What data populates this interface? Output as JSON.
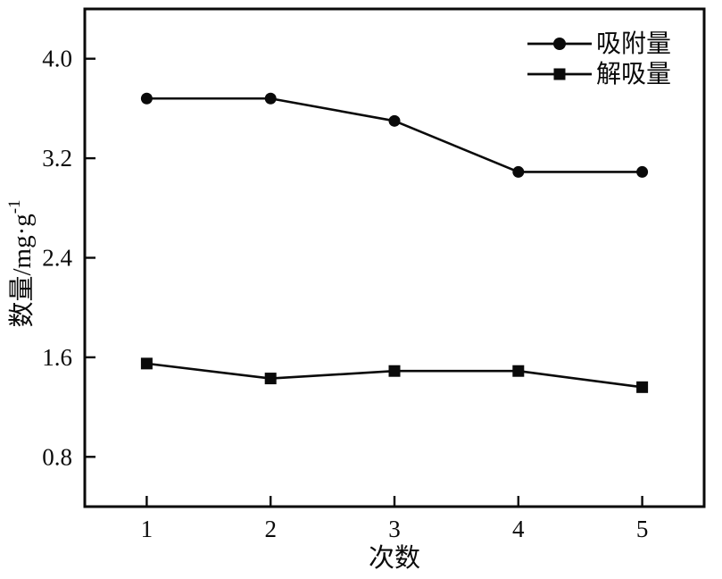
{
  "chart_data": {
    "type": "line",
    "title": "",
    "xlabel": "次数",
    "ylabel": {
      "text": "数量/mg·g",
      "sup": "-1"
    },
    "x": [
      1,
      2,
      3,
      4,
      5
    ],
    "xtick_labels": [
      "1",
      "2",
      "3",
      "4",
      "5"
    ],
    "yticks": [
      0.8,
      1.6,
      2.4,
      3.2,
      4.0
    ],
    "ytick_labels": [
      "0.8",
      "1.6",
      "2.4",
      "3.2",
      "4.0"
    ],
    "xlim": [
      0.5,
      5.5
    ],
    "ylim": [
      0.4,
      4.4
    ],
    "grid": false,
    "legend_position": "top-right",
    "line_color": "#0a0a0a",
    "background": "#ffffff",
    "series": [
      {
        "name": "吸附量",
        "marker": "circle",
        "values": [
          3.68,
          3.68,
          3.5,
          3.09,
          3.09
        ]
      },
      {
        "name": "解吸量",
        "marker": "square",
        "values": [
          1.55,
          1.43,
          1.49,
          1.49,
          1.36
        ]
      }
    ]
  }
}
